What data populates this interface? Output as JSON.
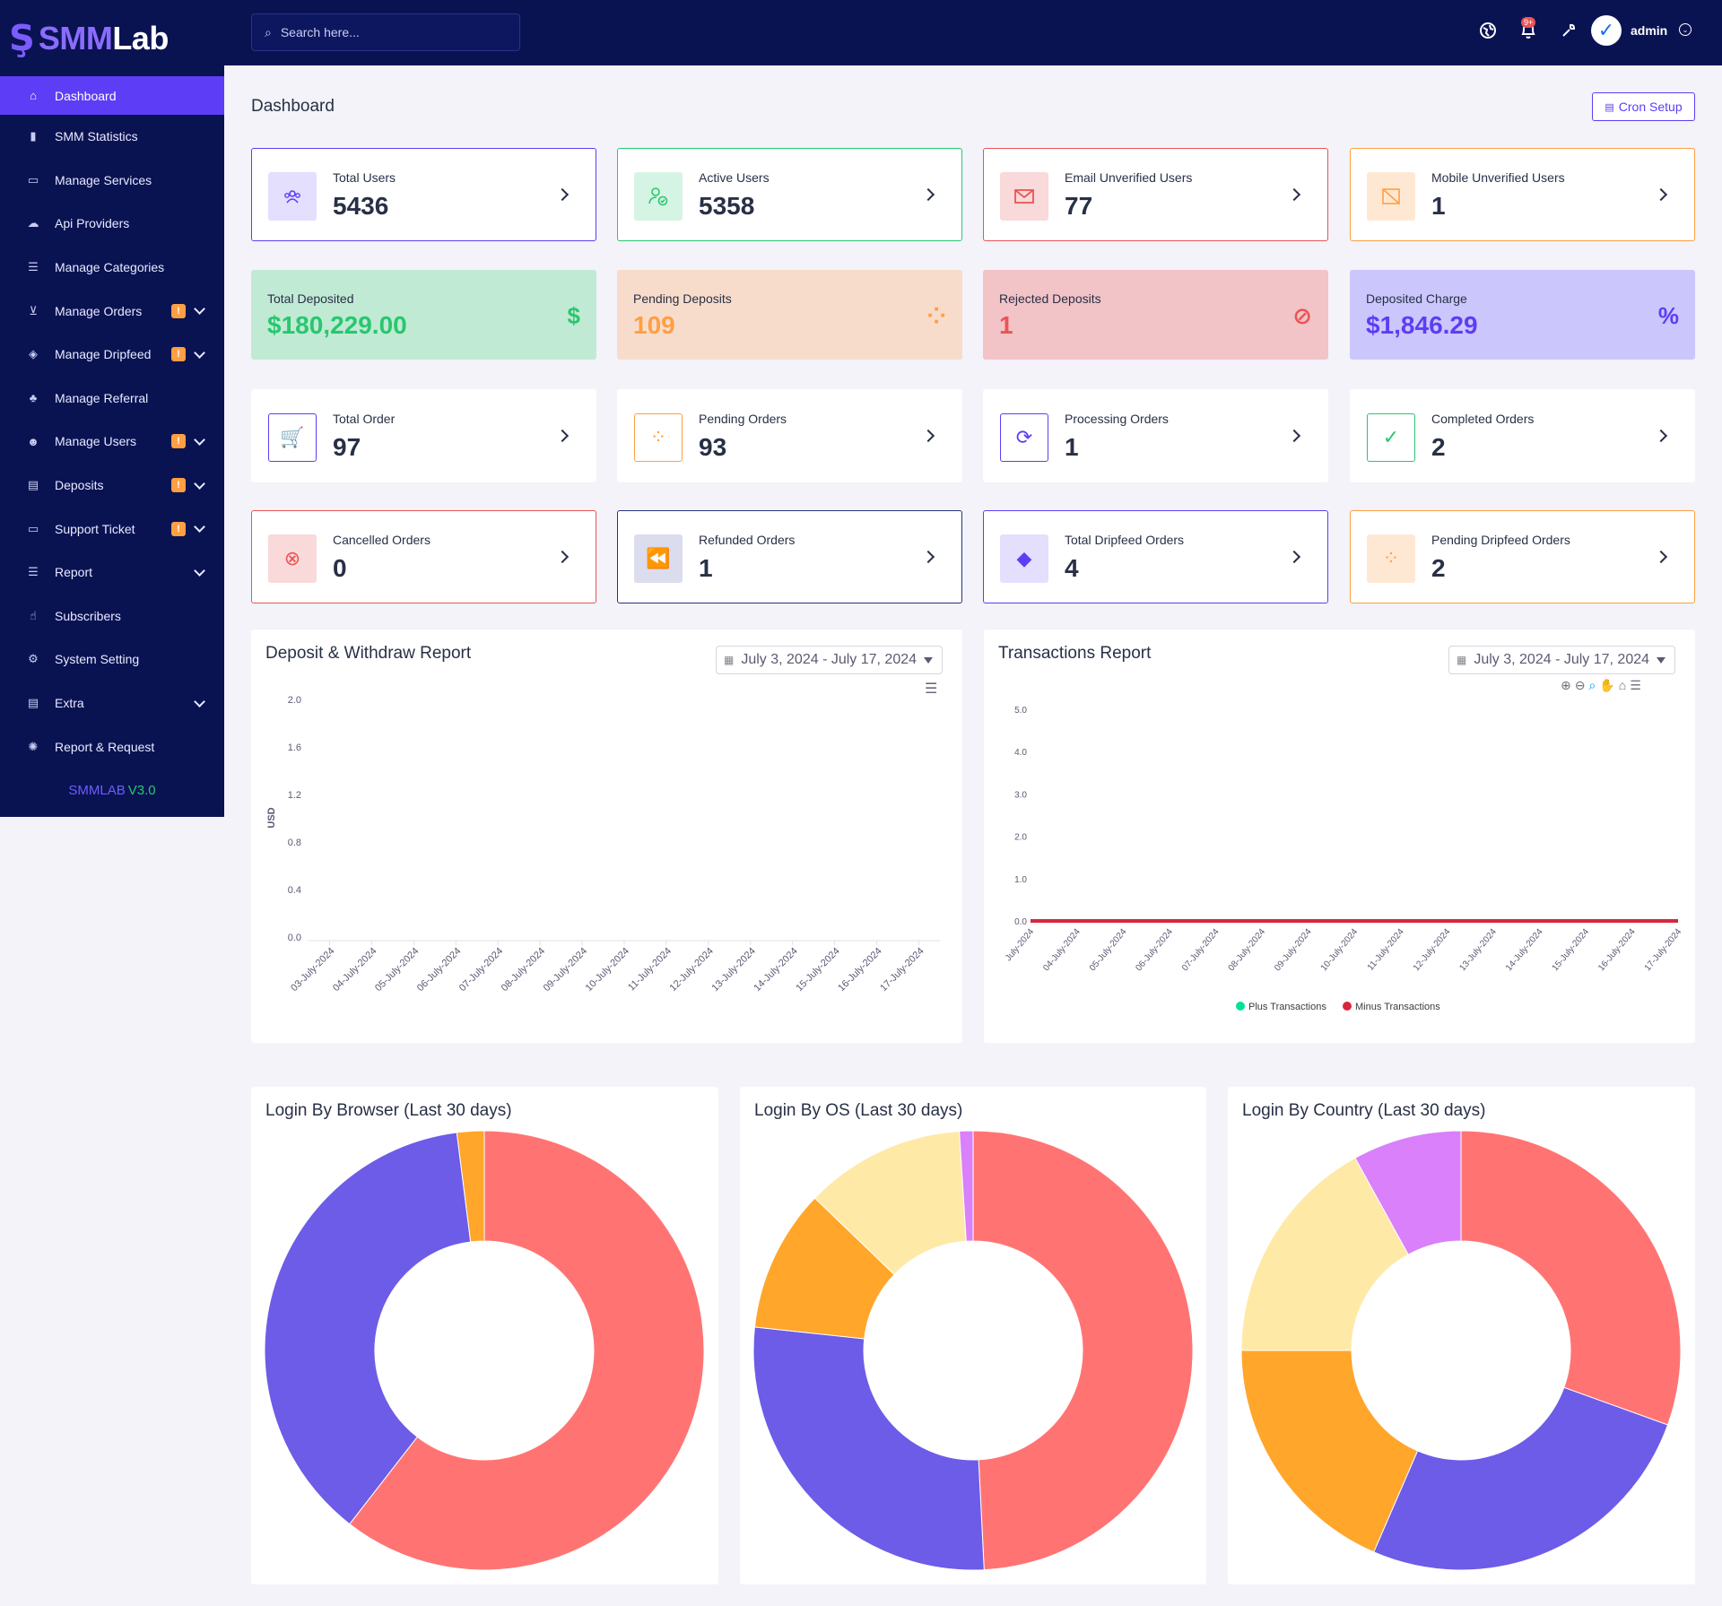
{
  "brand": {
    "logo_text_1": "SMM",
    "logo_text_2": "Lab",
    "version_name": "SMMLAB",
    "version_number": "V3.0"
  },
  "search": {
    "placeholder": "Search here..."
  },
  "topbar": {
    "notif_badge": "9+",
    "admin_name": "admin"
  },
  "sidebar": {
    "items": [
      {
        "label": "Dashboard",
        "icon": "home-icon",
        "active": true
      },
      {
        "label": "SMM Statistics",
        "icon": "bar-chart-icon"
      },
      {
        "label": "Manage Services",
        "icon": "layers-icon"
      },
      {
        "label": "Api Providers",
        "icon": "cloud-icon"
      },
      {
        "label": "Manage Categories",
        "icon": "list-icon"
      },
      {
        "label": "Manage Orders",
        "icon": "cart-icon",
        "badge": "!",
        "chevron": true
      },
      {
        "label": "Manage Dripfeed",
        "icon": "paint-bucket-icon",
        "badge": "!",
        "chevron": true
      },
      {
        "label": "Manage Referral",
        "icon": "tree-icon"
      },
      {
        "label": "Manage Users",
        "icon": "users-icon",
        "badge": "!",
        "chevron": true
      },
      {
        "label": "Deposits",
        "icon": "file-icon",
        "badge": "!",
        "chevron": true
      },
      {
        "label": "Support Ticket",
        "icon": "ticket-icon",
        "badge": "!",
        "chevron": true
      },
      {
        "label": "Report",
        "icon": "list-icon",
        "chevron": true
      },
      {
        "label": "Subscribers",
        "icon": "thumbs-up-icon"
      },
      {
        "label": "System Setting",
        "icon": "settings-icon"
      },
      {
        "label": "Extra",
        "icon": "server-icon",
        "chevron": true
      },
      {
        "label": "Report & Request",
        "icon": "bug-icon"
      }
    ]
  },
  "page": {
    "title": "Dashboard",
    "cron_label": "Cron Setup"
  },
  "user_cards": [
    {
      "label": "Total Users",
      "value": "5436",
      "color": "#5d3df5",
      "bg": "#e3dffd",
      "icon": "users-icon"
    },
    {
      "label": "Active Users",
      "value": "5358",
      "color": "#28c76f",
      "bg": "#d6f4e3",
      "icon": "user-check-icon"
    },
    {
      "label": "Email Unverified Users",
      "value": "77",
      "color": "#ea5455",
      "bg": "#f9d9d9",
      "icon": "mail-icon"
    },
    {
      "label": "Mobile Unverified Users",
      "value": "1",
      "color": "#ff9f43",
      "bg": "#ffe8d3",
      "icon": "phone-off-icon"
    }
  ],
  "deposit_cards": [
    {
      "label": "Total Deposited",
      "value": "$180,229.00",
      "bg": "#c1ead4",
      "color": "#28c76f",
      "icon": "hand-dollar-icon",
      "glyph": "$"
    },
    {
      "label": "Pending Deposits",
      "value": "109",
      "bg": "#f8dccb",
      "color": "#ff9f43",
      "icon": "spinner-icon",
      "glyph": "⁘"
    },
    {
      "label": "Rejected Deposits",
      "value": "1",
      "bg": "#f2c3c7",
      "color": "#ea5455",
      "icon": "ban-icon",
      "glyph": "⊘"
    },
    {
      "label": "Deposited Charge",
      "value": "$1,846.29",
      "bg": "#cbc6fc",
      "color": "#5d3df5",
      "icon": "percent-icon",
      "glyph": "%"
    }
  ],
  "order_cards": [
    {
      "label": "Total Order",
      "value": "97",
      "color": "#5d3df5",
      "icon": "cart-icon",
      "glyph": "🛒"
    },
    {
      "label": "Pending Orders",
      "value": "93",
      "color": "#ff9f43",
      "icon": "spinner-icon",
      "glyph": "⁘"
    },
    {
      "label": "Processing Orders",
      "value": "1",
      "color": "#5d3df5",
      "icon": "refresh-icon",
      "glyph": "⟳"
    },
    {
      "label": "Completed Orders",
      "value": "2",
      "color": "#28c76f",
      "icon": "check-circle-icon",
      "glyph": "✓"
    }
  ],
  "status_cards": [
    {
      "label": "Cancelled Orders",
      "value": "0",
      "color": "#ea5455",
      "bg": "#f9d9d9",
      "icon": "x-circle-icon",
      "glyph": "⊗"
    },
    {
      "label": "Refunded Orders",
      "value": "1",
      "color": "#283280",
      "bg": "#dcdcef",
      "icon": "rewind-icon",
      "glyph": "⏪"
    },
    {
      "label": "Total Dripfeed Orders",
      "value": "4",
      "color": "#5d3df5",
      "bg": "#e3dffd",
      "icon": "paint-bucket-icon",
      "glyph": "◆"
    },
    {
      "label": "Pending Dripfeed Orders",
      "value": "2",
      "color": "#ff9f43",
      "bg": "#ffe8d3",
      "icon": "spinner-icon",
      "glyph": "⁘"
    }
  ],
  "deposit_report": {
    "title": "Deposit & Withdraw Report",
    "date_range": "July 3, 2024 - July 17, 2024"
  },
  "transactions_report": {
    "title": "Transactions Report",
    "date_range": "July 3, 2024 - July 17, 2024"
  },
  "login_browser": {
    "title": "Login By Browser (Last 30 days)"
  },
  "login_os": {
    "title": "Login By OS (Last 30 days)"
  },
  "login_country": {
    "title": "Login By Country (Last 30 days)"
  },
  "chart_data": [
    {
      "type": "bar",
      "ylabel": "USD",
      "ylim": [
        0,
        2.0
      ],
      "yticks": [
        "0.0",
        "0.4",
        "0.8",
        "1.2",
        "1.6",
        "2.0"
      ],
      "categories": [
        "03-July-2024",
        "04-July-2024",
        "05-July-2024",
        "06-July-2024",
        "07-July-2024",
        "08-July-2024",
        "09-July-2024",
        "10-July-2024",
        "11-July-2024",
        "12-July-2024",
        "13-July-2024",
        "14-July-2024",
        "15-July-2024",
        "16-July-2024",
        "17-July-2024"
      ],
      "series": []
    },
    {
      "type": "area",
      "ylim": [
        0,
        5.0
      ],
      "yticks": [
        "0.0",
        "1.0",
        "2.0",
        "3.0",
        "4.0",
        "5.0"
      ],
      "categories": [
        "July-2024",
        "04-July-2024",
        "05-July-2024",
        "06-July-2024",
        "07-July-2024",
        "08-July-2024",
        "09-July-2024",
        "10-July-2024",
        "11-July-2024",
        "12-July-2024",
        "13-July-2024",
        "14-July-2024",
        "15-July-2024",
        "16-July-2024",
        "17-July-2024"
      ],
      "series": [
        {
          "name": "Plus Transactions",
          "color": "#00e396",
          "values": [
            0,
            0,
            0,
            0,
            0,
            0,
            0,
            0,
            0,
            0,
            0,
            0,
            0,
            0,
            0
          ]
        },
        {
          "name": "Minus Transactions",
          "color": "#d7263d",
          "values": [
            0,
            0,
            0,
            0,
            0,
            0,
            0,
            0,
            0,
            0,
            0,
            0,
            0,
            0,
            0
          ]
        }
      ]
    },
    {
      "type": "pie",
      "slices": [
        {
          "value": 60.5,
          "color": "#ff7473"
        },
        {
          "value": 37.5,
          "color": "#6c5ce7"
        },
        {
          "value": 2.0,
          "color": "#ffa62b"
        }
      ]
    },
    {
      "type": "pie",
      "slices": [
        {
          "value": 49.2,
          "color": "#ff7473"
        },
        {
          "value": 27.5,
          "color": "#6c5ce7"
        },
        {
          "value": 10.5,
          "color": "#ffa62b"
        },
        {
          "value": 11.8,
          "color": "#ffe9a6"
        },
        {
          "value": 1.0,
          "color": "#d980fa"
        }
      ]
    },
    {
      "type": "pie",
      "slices": [
        {
          "value": 30.5,
          "color": "#ff7473"
        },
        {
          "value": 26.0,
          "color": "#6c5ce7"
        },
        {
          "value": 18.5,
          "color": "#ffa62b"
        },
        {
          "value": 17.0,
          "color": "#ffe9a6"
        },
        {
          "value": 8.0,
          "color": "#d980fa"
        }
      ]
    }
  ]
}
